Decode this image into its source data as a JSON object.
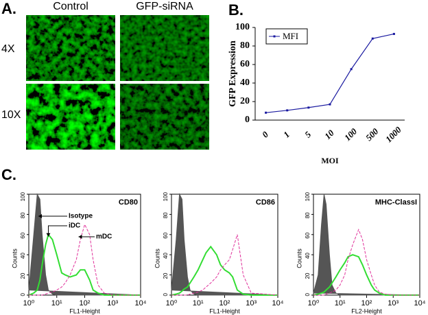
{
  "panel_a": {
    "label": "A.",
    "columns": [
      "Control",
      "GFP-siRNA"
    ],
    "rows": [
      "4X",
      "10X"
    ]
  },
  "chart_data": [
    {
      "type": "line",
      "panel_label": "B.",
      "y_label": "GFP Expression",
      "x_label": "MOI",
      "categories": [
        "0",
        "1",
        "5",
        "10",
        "100",
        "500",
        "1000"
      ],
      "series": [
        {
          "name": "MFI",
          "color": "#1a1aa0",
          "values": [
            8,
            10.5,
            13.5,
            17,
            55,
            88,
            93
          ]
        }
      ],
      "ylim": [
        0,
        100
      ],
      "yticks": [
        0,
        20,
        40,
        60,
        80,
        100
      ],
      "legend": "top-left"
    },
    {
      "type": "line",
      "panel_label": "C.",
      "title": "CD80",
      "x_label": "FL1-Height",
      "y_label": "Counts",
      "log_x": true,
      "x": [
        1,
        1.5,
        2,
        2.5,
        3,
        4,
        5,
        7,
        10,
        15,
        20,
        30,
        50,
        70,
        100,
        150,
        200,
        300,
        500,
        1000,
        10000
      ],
      "series": [
        {
          "name": "Isotype",
          "color": "#555555",
          "filled": true,
          "values": [
            5,
            60,
            100,
            95,
            60,
            20,
            5,
            1,
            0,
            0,
            0,
            0,
            0,
            0,
            0,
            0,
            0,
            0,
            0,
            0,
            0
          ]
        },
        {
          "name": "iDC",
          "color": "#33dd33",
          "values": [
            0,
            2,
            5,
            15,
            30,
            50,
            60,
            55,
            40,
            22,
            20,
            18,
            20,
            25,
            25,
            15,
            5,
            2,
            0,
            0,
            0
          ]
        },
        {
          "name": "mDC",
          "color": "#e0309a",
          "dashed": true,
          "values": [
            0,
            0,
            0,
            0,
            0,
            1,
            2,
            3,
            5,
            8,
            12,
            20,
            35,
            55,
            70,
            60,
            35,
            10,
            2,
            0,
            0
          ]
        }
      ],
      "xlim": [
        1,
        10000
      ],
      "xticks": [
        {
          "value": 1,
          "label": "10⁰"
        },
        {
          "value": 10,
          "label": "10¹"
        },
        {
          "value": 100,
          "label": "10²"
        },
        {
          "value": 1000,
          "label": "10³"
        },
        {
          "value": 10000,
          "label": "10⁴"
        }
      ],
      "ylim": [
        0,
        100
      ],
      "yticks": [
        0,
        20,
        40,
        60,
        80,
        100
      ]
    },
    {
      "type": "line",
      "title": "CD86",
      "x_label": "FL1-Height",
      "y_label": "Counts",
      "log_x": true,
      "x": [
        1,
        1.5,
        2,
        2.5,
        3,
        4,
        5,
        7,
        10,
        15,
        20,
        30,
        50,
        70,
        100,
        150,
        200,
        300,
        500,
        1000,
        10000
      ],
      "series": [
        {
          "color": "#555555",
          "filled": true,
          "values": [
            5,
            55,
            100,
            95,
            55,
            18,
            5,
            1,
            0,
            0,
            0,
            0,
            0,
            0,
            0,
            0,
            0,
            0,
            0,
            0,
            0
          ]
        },
        {
          "color": "#33dd33",
          "values": [
            0,
            1,
            2,
            4,
            6,
            8,
            12,
            18,
            25,
            35,
            42,
            48,
            40,
            30,
            25,
            22,
            18,
            5,
            1,
            0,
            0
          ]
        },
        {
          "color": "#e0309a",
          "dashed": true,
          "values": [
            0,
            0,
            0,
            0,
            0,
            0,
            1,
            2,
            3,
            5,
            8,
            12,
            18,
            25,
            30,
            35,
            45,
            60,
            20,
            2,
            0
          ]
        }
      ],
      "xlim": [
        1,
        10000
      ],
      "xticks": [
        {
          "value": 1,
          "label": "10⁰"
        },
        {
          "value": 10,
          "label": "10¹"
        },
        {
          "value": 100,
          "label": "10²"
        },
        {
          "value": 1000,
          "label": "10³"
        },
        {
          "value": 10000,
          "label": "10⁴"
        }
      ],
      "ylim": [
        0,
        100
      ],
      "yticks": [
        0,
        20,
        40,
        60,
        80,
        100
      ]
    },
    {
      "type": "line",
      "title": "MHC-ClassI",
      "x_label": "FL2-Height",
      "y_label": "Counts",
      "log_x": true,
      "x": [
        1,
        1.5,
        2,
        2.5,
        3,
        4,
        5,
        7,
        10,
        15,
        20,
        30,
        50,
        70,
        100,
        150,
        200,
        300,
        500,
        1000,
        10000
      ],
      "series": [
        {
          "color": "#555555",
          "filled": true,
          "values": [
            2,
            20,
            70,
            100,
            90,
            40,
            10,
            2,
            0,
            0,
            0,
            0,
            0,
            0,
            0,
            0,
            0,
            0,
            0,
            0,
            0
          ]
        },
        {
          "color": "#33dd33",
          "values": [
            0,
            1,
            2,
            3,
            5,
            8,
            12,
            18,
            25,
            32,
            38,
            40,
            38,
            30,
            20,
            10,
            5,
            2,
            0,
            0,
            0
          ]
        },
        {
          "color": "#e0309a",
          "dashed": true,
          "values": [
            0,
            0,
            0,
            0,
            1,
            2,
            3,
            5,
            10,
            20,
            35,
            50,
            65,
            55,
            35,
            20,
            10,
            3,
            1,
            0,
            0
          ]
        }
      ],
      "xlim": [
        1,
        10000
      ],
      "xticks": [
        {
          "value": 1,
          "label": "10⁰"
        },
        {
          "value": 10,
          "label": "10¹"
        },
        {
          "value": 100,
          "label": "10²"
        },
        {
          "value": 1000,
          "label": "10³"
        },
        {
          "value": 10000,
          "label": "10⁴"
        }
      ],
      "ylim": [
        0,
        100
      ],
      "yticks": [
        0,
        20,
        40,
        60,
        80,
        100
      ]
    }
  ]
}
